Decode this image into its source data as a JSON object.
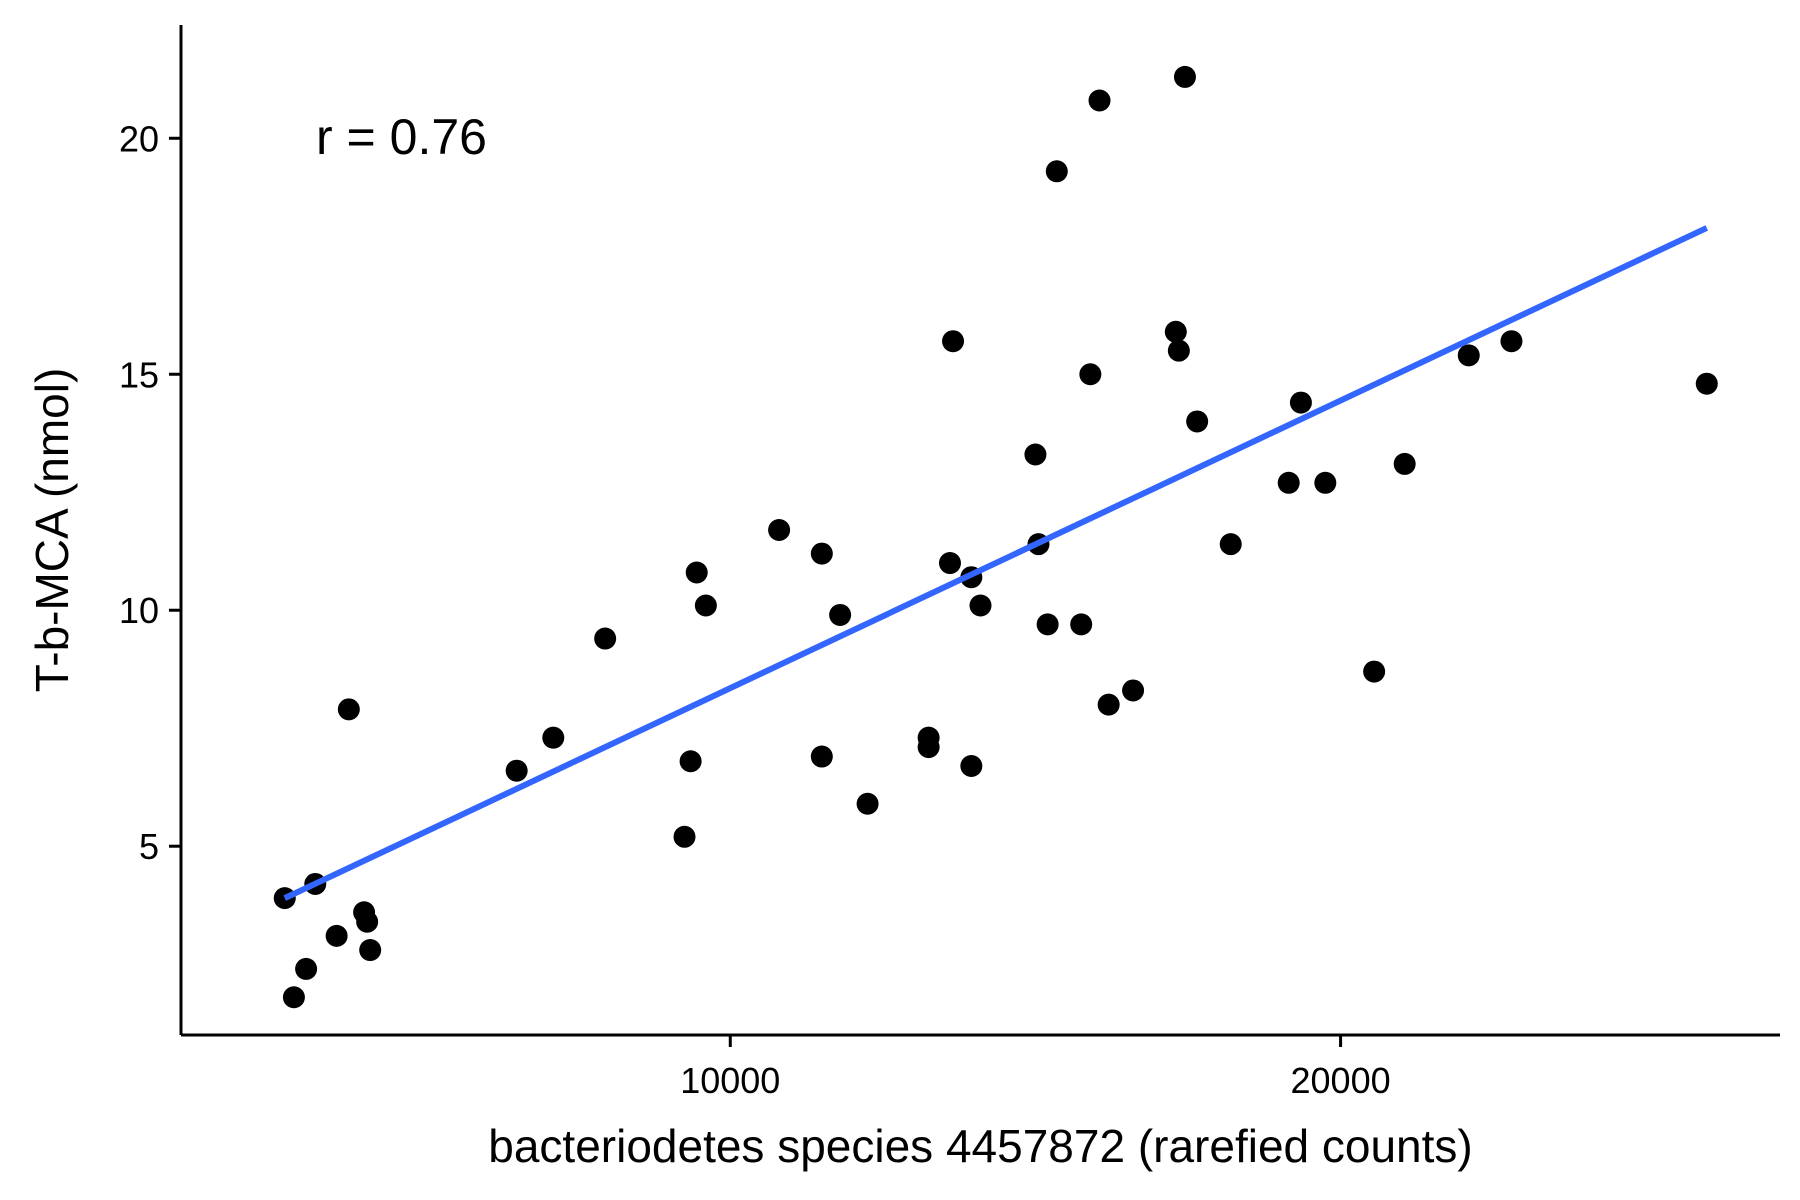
{
  "chart_data": {
    "type": "scatter",
    "title": "",
    "xlabel": "bacteriodetes species 4457872 (rarefied counts)",
    "ylabel": "T-b-MCA (nmol)",
    "xlim": [
      1000,
      27200
    ],
    "ylim": [
      1.0,
      22.4
    ],
    "xticks": [
      10000,
      20000
    ],
    "xtick_labels": [
      "10000",
      "20000"
    ],
    "yticks": [
      5,
      10,
      15,
      20
    ],
    "ytick_labels": [
      "5",
      "10",
      "15",
      "20"
    ],
    "grid": false,
    "legend": "none",
    "annotation": "r = 0.76",
    "point_color": "#000000",
    "line_color": "#3366FF",
    "series": [
      {
        "points": [
          {
            "x": 2700,
            "y": 3.9
          },
          {
            "x": 2850,
            "y": 1.8
          },
          {
            "x": 3050,
            "y": 2.4
          },
          {
            "x": 3200,
            "y": 4.2
          },
          {
            "x": 3550,
            "y": 3.1
          },
          {
            "x": 3750,
            "y": 7.9
          },
          {
            "x": 4000,
            "y": 3.6
          },
          {
            "x": 4050,
            "y": 3.4
          },
          {
            "x": 4100,
            "y": 2.8
          },
          {
            "x": 6500,
            "y": 6.6
          },
          {
            "x": 7100,
            "y": 7.3
          },
          {
            "x": 7950,
            "y": 9.4
          },
          {
            "x": 9250,
            "y": 5.2
          },
          {
            "x": 9350,
            "y": 6.8
          },
          {
            "x": 9450,
            "y": 10.8
          },
          {
            "x": 9600,
            "y": 10.1
          },
          {
            "x": 10800,
            "y": 11.7
          },
          {
            "x": 11500,
            "y": 11.2
          },
          {
            "x": 11500,
            "y": 6.9
          },
          {
            "x": 11800,
            "y": 9.9
          },
          {
            "x": 12250,
            "y": 5.9
          },
          {
            "x": 13250,
            "y": 7.3
          },
          {
            "x": 13250,
            "y": 7.1
          },
          {
            "x": 13600,
            "y": 11.0
          },
          {
            "x": 13650,
            "y": 15.7
          },
          {
            "x": 13950,
            "y": 10.7
          },
          {
            "x": 13950,
            "y": 6.7
          },
          {
            "x": 14100,
            "y": 10.1
          },
          {
            "x": 15000,
            "y": 13.3
          },
          {
            "x": 15050,
            "y": 11.4
          },
          {
            "x": 15200,
            "y": 9.7
          },
          {
            "x": 15350,
            "y": 19.3
          },
          {
            "x": 15750,
            "y": 9.7
          },
          {
            "x": 15900,
            "y": 15.0
          },
          {
            "x": 16050,
            "y": 20.8
          },
          {
            "x": 16200,
            "y": 8.0
          },
          {
            "x": 16600,
            "y": 8.3
          },
          {
            "x": 17300,
            "y": 15.9
          },
          {
            "x": 17350,
            "y": 15.5
          },
          {
            "x": 17450,
            "y": 21.3
          },
          {
            "x": 17650,
            "y": 14.0
          },
          {
            "x": 18200,
            "y": 11.4
          },
          {
            "x": 19150,
            "y": 12.7
          },
          {
            "x": 19350,
            "y": 14.4
          },
          {
            "x": 19750,
            "y": 12.7
          },
          {
            "x": 20550,
            "y": 8.7
          },
          {
            "x": 21050,
            "y": 13.1
          },
          {
            "x": 22100,
            "y": 15.4
          },
          {
            "x": 22800,
            "y": 15.7
          },
          {
            "x": 26000,
            "y": 14.8
          }
        ]
      }
    ],
    "fit_line": {
      "x": [
        2700,
        26000
      ],
      "y": [
        3.9,
        18.1
      ]
    }
  }
}
